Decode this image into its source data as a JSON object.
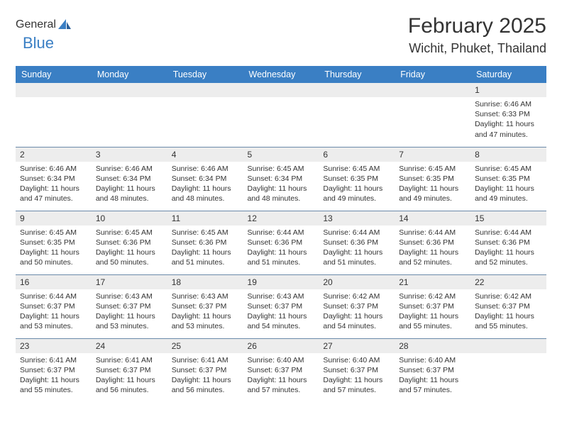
{
  "logo": {
    "part1": "General",
    "part2": "Blue"
  },
  "title": "February 2025",
  "location": "Wichit, Phuket, Thailand",
  "colors": {
    "header_bg": "#3a7fc4",
    "header_text": "#ffffff",
    "daynum_bg": "#ededed",
    "row_border": "#6b8aaa",
    "text": "#333333",
    "logo_gray": "#6b6b6b",
    "logo_blue": "#3a7fc4"
  },
  "weekdays": [
    "Sunday",
    "Monday",
    "Tuesday",
    "Wednesday",
    "Thursday",
    "Friday",
    "Saturday"
  ],
  "weeks": [
    [
      null,
      null,
      null,
      null,
      null,
      null,
      {
        "n": "1",
        "sr": "6:46 AM",
        "ss": "6:33 PM",
        "dl": "11 hours and 47 minutes."
      }
    ],
    [
      {
        "n": "2",
        "sr": "6:46 AM",
        "ss": "6:34 PM",
        "dl": "11 hours and 47 minutes."
      },
      {
        "n": "3",
        "sr": "6:46 AM",
        "ss": "6:34 PM",
        "dl": "11 hours and 48 minutes."
      },
      {
        "n": "4",
        "sr": "6:46 AM",
        "ss": "6:34 PM",
        "dl": "11 hours and 48 minutes."
      },
      {
        "n": "5",
        "sr": "6:45 AM",
        "ss": "6:34 PM",
        "dl": "11 hours and 48 minutes."
      },
      {
        "n": "6",
        "sr": "6:45 AM",
        "ss": "6:35 PM",
        "dl": "11 hours and 49 minutes."
      },
      {
        "n": "7",
        "sr": "6:45 AM",
        "ss": "6:35 PM",
        "dl": "11 hours and 49 minutes."
      },
      {
        "n": "8",
        "sr": "6:45 AM",
        "ss": "6:35 PM",
        "dl": "11 hours and 49 minutes."
      }
    ],
    [
      {
        "n": "9",
        "sr": "6:45 AM",
        "ss": "6:35 PM",
        "dl": "11 hours and 50 minutes."
      },
      {
        "n": "10",
        "sr": "6:45 AM",
        "ss": "6:36 PM",
        "dl": "11 hours and 50 minutes."
      },
      {
        "n": "11",
        "sr": "6:45 AM",
        "ss": "6:36 PM",
        "dl": "11 hours and 51 minutes."
      },
      {
        "n": "12",
        "sr": "6:44 AM",
        "ss": "6:36 PM",
        "dl": "11 hours and 51 minutes."
      },
      {
        "n": "13",
        "sr": "6:44 AM",
        "ss": "6:36 PM",
        "dl": "11 hours and 51 minutes."
      },
      {
        "n": "14",
        "sr": "6:44 AM",
        "ss": "6:36 PM",
        "dl": "11 hours and 52 minutes."
      },
      {
        "n": "15",
        "sr": "6:44 AM",
        "ss": "6:36 PM",
        "dl": "11 hours and 52 minutes."
      }
    ],
    [
      {
        "n": "16",
        "sr": "6:44 AM",
        "ss": "6:37 PM",
        "dl": "11 hours and 53 minutes."
      },
      {
        "n": "17",
        "sr": "6:43 AM",
        "ss": "6:37 PM",
        "dl": "11 hours and 53 minutes."
      },
      {
        "n": "18",
        "sr": "6:43 AM",
        "ss": "6:37 PM",
        "dl": "11 hours and 53 minutes."
      },
      {
        "n": "19",
        "sr": "6:43 AM",
        "ss": "6:37 PM",
        "dl": "11 hours and 54 minutes."
      },
      {
        "n": "20",
        "sr": "6:42 AM",
        "ss": "6:37 PM",
        "dl": "11 hours and 54 minutes."
      },
      {
        "n": "21",
        "sr": "6:42 AM",
        "ss": "6:37 PM",
        "dl": "11 hours and 55 minutes."
      },
      {
        "n": "22",
        "sr": "6:42 AM",
        "ss": "6:37 PM",
        "dl": "11 hours and 55 minutes."
      }
    ],
    [
      {
        "n": "23",
        "sr": "6:41 AM",
        "ss": "6:37 PM",
        "dl": "11 hours and 55 minutes."
      },
      {
        "n": "24",
        "sr": "6:41 AM",
        "ss": "6:37 PM",
        "dl": "11 hours and 56 minutes."
      },
      {
        "n": "25",
        "sr": "6:41 AM",
        "ss": "6:37 PM",
        "dl": "11 hours and 56 minutes."
      },
      {
        "n": "26",
        "sr": "6:40 AM",
        "ss": "6:37 PM",
        "dl": "11 hours and 57 minutes."
      },
      {
        "n": "27",
        "sr": "6:40 AM",
        "ss": "6:37 PM",
        "dl": "11 hours and 57 minutes."
      },
      {
        "n": "28",
        "sr": "6:40 AM",
        "ss": "6:37 PM",
        "dl": "11 hours and 57 minutes."
      },
      null
    ]
  ],
  "labels": {
    "sunrise": "Sunrise:",
    "sunset": "Sunset:",
    "daylight": "Daylight:"
  }
}
